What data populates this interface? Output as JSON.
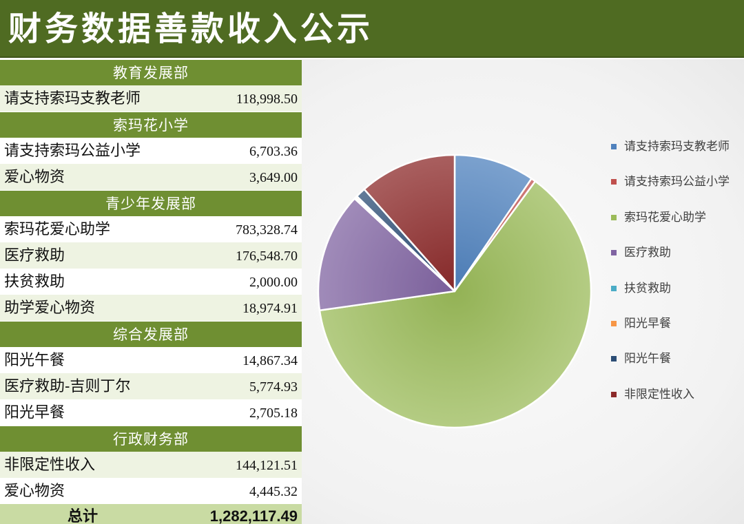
{
  "header": {
    "title": "财务数据善款收入公示"
  },
  "table": {
    "rows": [
      {
        "kind": "section",
        "label": "教育发展部"
      },
      {
        "kind": "item",
        "name": "请支持索玛支教老师",
        "value": "118,998.50",
        "shade": "light"
      },
      {
        "kind": "section",
        "label": "索玛花小学"
      },
      {
        "kind": "item",
        "name": "请支持索玛公益小学",
        "value": "6,703.36",
        "shade": "white"
      },
      {
        "kind": "item",
        "name": "爱心物资",
        "value": "3,649.00",
        "shade": "light"
      },
      {
        "kind": "section",
        "label": "青少年发展部"
      },
      {
        "kind": "item",
        "name": "索玛花爱心助学",
        "value": "783,328.74",
        "shade": "white"
      },
      {
        "kind": "item",
        "name": "医疗救助",
        "value": "176,548.70",
        "shade": "light"
      },
      {
        "kind": "item",
        "name": "扶贫救助",
        "value": "2,000.00",
        "shade": "white"
      },
      {
        "kind": "item",
        "name": "助学爱心物资",
        "value": "18,974.91",
        "shade": "light"
      },
      {
        "kind": "section",
        "label": "综合发展部"
      },
      {
        "kind": "item",
        "name": "阳光午餐",
        "value": "14,867.34",
        "shade": "white"
      },
      {
        "kind": "item",
        "name": "医疗救助-吉则丁尔",
        "value": "5,774.93",
        "shade": "light"
      },
      {
        "kind": "item",
        "name": "阳光早餐",
        "value": "2,705.18",
        "shade": "white"
      },
      {
        "kind": "section",
        "label": "行政财务部"
      },
      {
        "kind": "item",
        "name": "非限定性收入",
        "value": "144,121.51",
        "shade": "light"
      },
      {
        "kind": "item",
        "name": "爱心物资",
        "value": "4,445.32",
        "shade": "white"
      },
      {
        "kind": "total",
        "name": "总计",
        "value": "1,282,117.49"
      }
    ]
  },
  "chart_data": {
    "type": "pie",
    "title": "",
    "legend_position": "right",
    "categories": [
      "请支持索玛支教老师",
      "请支持索玛公益小学",
      "索玛花爱心助学",
      "医疗救助",
      "扶贫救助",
      "阳光早餐",
      "阳光午餐",
      "非限定性收入"
    ],
    "values": [
      118998.5,
      6703.36,
      783328.74,
      176548.7,
      2000.0,
      2705.18,
      14867.34,
      144121.51
    ],
    "colors": [
      "#4f81bd",
      "#c0504d",
      "#9bbb59",
      "#8064a2",
      "#4bacc6",
      "#f79646",
      "#2c4d75",
      "#8c2a2a"
    ],
    "start_angle_deg": 0,
    "direction": "clockwise"
  }
}
